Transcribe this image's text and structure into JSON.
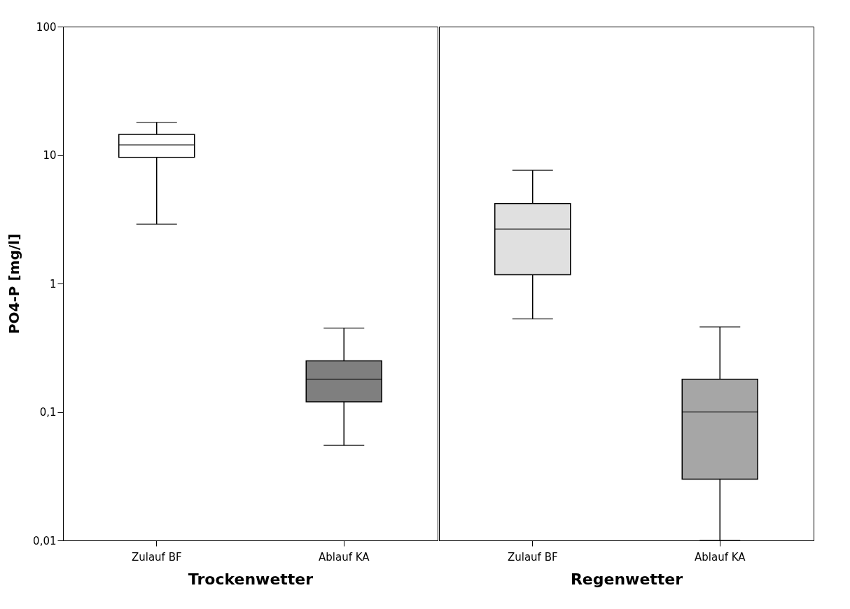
{
  "chart_data": [
    {
      "type": "box",
      "xlabel": "Trockenwetter",
      "ylabel": "PO4-P [mg/l]",
      "categories": [
        "Zulauf BF",
        "Ablauf KA"
      ],
      "log": true,
      "ylim": [
        0.01,
        100
      ],
      "yticks": [
        {
          "value": 0.01,
          "label": "0,01"
        },
        {
          "value": 0.1,
          "label": "0,1"
        },
        1,
        10,
        100
      ],
      "colors": [
        "#ffffff",
        "#7f7f7f"
      ],
      "boxes": [
        {
          "low": 2.9,
          "q1": 9.6,
          "median": 12,
          "q3": 14.5,
          "high": 18
        },
        {
          "low": 0.055,
          "q1": 0.12,
          "median": 0.18,
          "q3": 0.25,
          "high": 0.45
        }
      ]
    },
    {
      "type": "box",
      "xlabel": "Regenwetter",
      "categories": [
        "Zulauf BF",
        "Ablauf KA"
      ],
      "log": true,
      "tick_labels": "x",
      "ylim": [
        0.01,
        100
      ],
      "colors": [
        "#e0e0e0",
        "#a6a6a6"
      ],
      "boxes": [
        {
          "low": 0.53,
          "q1": 1.17,
          "median": 2.65,
          "q3": 4.2,
          "high": 7.6
        },
        {
          "low": 0.01,
          "q1": 0.03,
          "median": 0.1,
          "q3": 0.18,
          "high": 0.46
        }
      ]
    }
  ]
}
